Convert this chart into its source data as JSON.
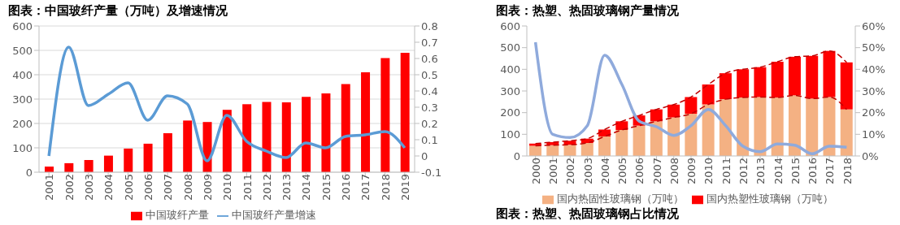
{
  "chart_data": [
    {
      "type": "bar",
      "title": "图表：中国玻纤产量（万吨）及增速情况",
      "categories": [
        "2001",
        "2002",
        "2003",
        "2004",
        "2005",
        "2006",
        "2007",
        "2008",
        "2009",
        "2010",
        "2011",
        "2012",
        "2013",
        "2014",
        "2015",
        "2016",
        "2017",
        "2018",
        "2019"
      ],
      "series": [
        {
          "name": "中国玻纤产量",
          "color": "#ff0000",
          "values": [
            23,
            37,
            50,
            68,
            97,
            117,
            160,
            212,
            206,
            256,
            279,
            288,
            287,
            309,
            323,
            362,
            410,
            468,
            490
          ]
        },
        {
          "name": "中国玻纤产量增速",
          "type": "line",
          "axis": "y2",
          "color": "#5b9bd5",
          "values": [
            0,
            0.67,
            0.31,
            0.38,
            0.45,
            0.22,
            0.37,
            0.32,
            -0.03,
            0.25,
            0.09,
            0.03,
            -0.01,
            0.08,
            0.05,
            0.12,
            0.13,
            0.15,
            0.05
          ]
        }
      ],
      "ylim": [
        0,
        600
      ],
      "yticks": [
        0,
        100,
        200,
        300,
        400,
        500,
        600
      ],
      "y2lim": [
        -0.1,
        0.8
      ],
      "y2ticks": [
        -0.1,
        0,
        0.1,
        0.2,
        0.3,
        0.4,
        0.5,
        0.6,
        0.7,
        0.8
      ],
      "grid": "y",
      "legend": "bottom",
      "marker": "none"
    },
    {
      "type": "bar",
      "title": "图表：热塑、热固玻璃钢产量情况",
      "categories": [
        "2000",
        "2001",
        "2002",
        "2003",
        "2004",
        "2005",
        "2006",
        "2007",
        "2008",
        "2009",
        "2010",
        "2011",
        "2012",
        "2013",
        "2014",
        "2015",
        "2016",
        "2017",
        "2018"
      ],
      "stacked": true,
      "series": [
        {
          "name": "国内热固性玻璃钢（万吨）",
          "color": "#f4b183",
          "values": [
            47,
            50,
            52,
            60,
            90,
            120,
            140,
            160,
            178,
            195,
            238,
            262,
            270,
            272,
            270,
            280,
            265,
            272,
            215
          ]
        },
        {
          "name": "国内热塑性玻璃钢（万吨）",
          "color": "#ff0000",
          "values": [
            10,
            14,
            18,
            20,
            32,
            40,
            47,
            55,
            59,
            77,
            92,
            120,
            130,
            138,
            165,
            178,
            197,
            213,
            217
          ]
        },
        {
          "type": "line",
          "color": "#c00000",
          "line_style": "dashed",
          "values": [
            47,
            50,
            52,
            60,
            90,
            120,
            140,
            160,
            178,
            195,
            238,
            262,
            270,
            272,
            270,
            280,
            265,
            272,
            215
          ]
        },
        {
          "type": "line",
          "color": "#c00000",
          "line_style": "dashed",
          "values": [
            57,
            64,
            70,
            80,
            122,
            160,
            187,
            215,
            237,
            272,
            330,
            382,
            400,
            410,
            435,
            458,
            462,
            485,
            432
          ]
        },
        {
          "type": "line",
          "axis": "y2",
          "color": "#8faadc",
          "values": [
            52.5,
            10,
            8.5,
            14,
            46.5,
            33,
            16,
            13.5,
            9.5,
            14,
            21.5,
            14,
            4.5,
            2,
            5.5,
            5,
            1,
            4.5,
            4
          ]
        }
      ],
      "ylim": [
        0,
        600
      ],
      "yticks": [
        0,
        100,
        200,
        300,
        400,
        500,
        600
      ],
      "y2lim": [
        0,
        60
      ],
      "y2ticks": [
        {
          "value": 0,
          "label": "0%"
        },
        {
          "value": 10,
          "label": "10%"
        },
        {
          "value": 20,
          "label": "20%"
        },
        {
          "value": 30,
          "label": "30%"
        },
        {
          "value": 40,
          "label": "40%"
        },
        {
          "value": 50,
          "label": "50%"
        },
        {
          "value": 60,
          "label": "60%"
        }
      ],
      "grid": false,
      "legend": "bottom",
      "marker": "none",
      "annotations": [
        "图表：热塑、热固玻璃钢占比情况"
      ]
    }
  ]
}
